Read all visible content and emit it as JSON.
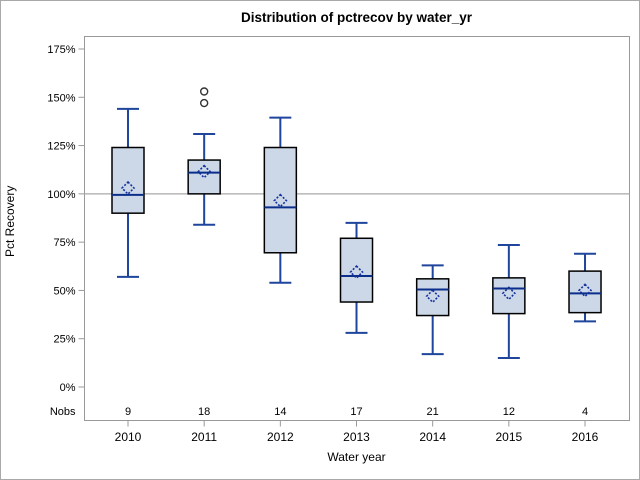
{
  "figure": {
    "title": "Distribution of pctrecov by water_yr",
    "xlabel": "Water year",
    "ylabel": "Pct Recovery"
  },
  "colors": {
    "background": "#ffffff",
    "outer_border": "#a9a9a9",
    "frame": "#999999",
    "reference_line": "#a9a9a9",
    "box_fill": "#ccd7e8",
    "box_border": "#000000",
    "whisker": "#1f459c",
    "median": "#0b2e8a",
    "mean_marker": "#14339b",
    "outlier": "#333333",
    "text": "#000000"
  },
  "chart_data": {
    "type": "boxplot",
    "title": "Distribution of pctrecov by water_yr",
    "xlabel": "Water year",
    "ylabel": "Pct Recovery",
    "categories": [
      "2010",
      "2011",
      "2012",
      "2013",
      "2014",
      "2015",
      "2016"
    ],
    "nobs_label": "Nobs",
    "nobs": [
      9,
      18,
      14,
      17,
      21,
      12,
      4
    ],
    "ytick_values": [
      0,
      25,
      50,
      75,
      100,
      125,
      150,
      175
    ],
    "ytick_labels": [
      "0%",
      "25%",
      "50%",
      "75%",
      "100%",
      "125%",
      "150%",
      "175%"
    ],
    "ylim": [
      -18,
      182
    ],
    "grid": false,
    "legend": "none",
    "reference_line_y": 100,
    "series": [
      {
        "category": "2010",
        "nobs": 9,
        "low": 57,
        "q1": 90,
        "median": 99.5,
        "q3": 124,
        "high": 144,
        "mean": 103,
        "outliers": []
      },
      {
        "category": "2011",
        "nobs": 18,
        "low": 84,
        "q1": 100,
        "median": 111,
        "q3": 117.5,
        "high": 131,
        "mean": 111.5,
        "outliers": [
          153,
          147
        ]
      },
      {
        "category": "2012",
        "nobs": 14,
        "low": 54,
        "q1": 69.5,
        "median": 93,
        "q3": 124,
        "high": 139.5,
        "mean": 96.5,
        "outliers": []
      },
      {
        "category": "2013",
        "nobs": 17,
        "low": 28,
        "q1": 44,
        "median": 57.5,
        "q3": 77,
        "high": 85,
        "mean": 59.5,
        "outliers": []
      },
      {
        "category": "2014",
        "nobs": 21,
        "low": 17,
        "q1": 37,
        "median": 50.5,
        "q3": 56,
        "high": 63,
        "mean": 47,
        "outliers": []
      },
      {
        "category": "2015",
        "nobs": 12,
        "low": 15,
        "q1": 38,
        "median": 51,
        "q3": 56.5,
        "high": 73.5,
        "mean": 48.5,
        "outliers": []
      },
      {
        "category": "2016",
        "nobs": 4,
        "low": 34,
        "q1": 38.5,
        "median": 48.5,
        "q3": 60,
        "high": 69,
        "mean": 50,
        "outliers": []
      }
    ]
  }
}
